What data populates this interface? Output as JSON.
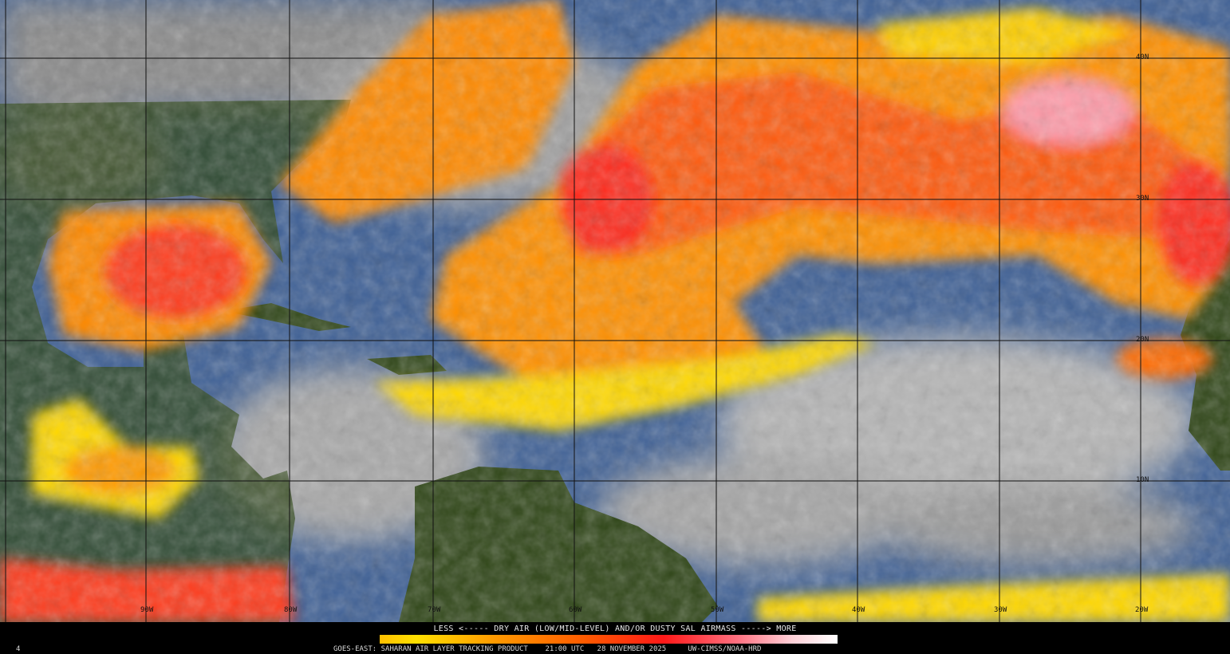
{
  "product": {
    "legend_title": "LESS <----- DRY AIR (LOW/MID-LEVEL) AND/OR DUSTY SAL AIRMASS -----> MORE",
    "footer": "GOES-EAST: SAHARAN AIR LAYER TRACKING PRODUCT    21:00 UTC   28 NOVEMBER 2025     UW-CIMSS/NOAA-HRD",
    "frame_number": "4",
    "colorbar_colors": [
      "#ffc000",
      "#ffe000",
      "#ff9a00",
      "#ff5a00",
      "#ff1818",
      "#ff7080",
      "#ffd0d8",
      "#ffffff"
    ]
  },
  "grid": {
    "longitude_labels": [
      "90W",
      "80W",
      "70W",
      "60W",
      "50W",
      "40W",
      "30W",
      "20W"
    ],
    "latitude_labels": [
      "40N",
      "30N",
      "20N",
      "10N"
    ]
  },
  "colors": {
    "ocean": "#3d5f95",
    "land": "#2e4516",
    "cloud": "#9a9a9a",
    "sal_low": "#ffd800",
    "sal_mid": "#ff8a00",
    "sal_high": "#ff2a1a",
    "sal_max": "#ff9aa8"
  }
}
